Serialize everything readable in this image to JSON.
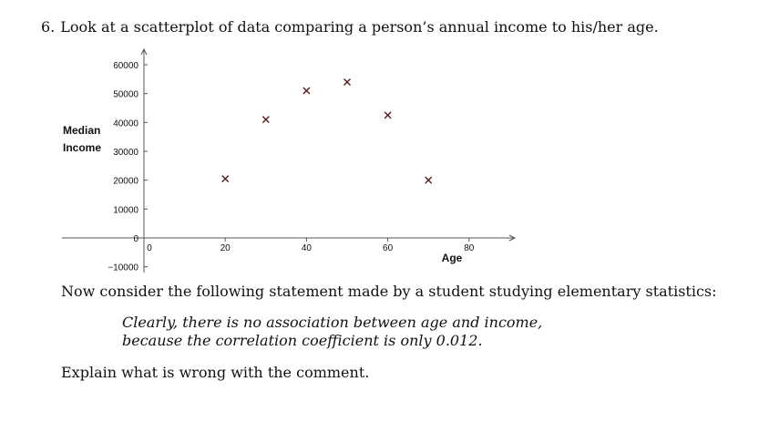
{
  "question": {
    "number": "6.",
    "text": "Look at a scatterplot of data comparing a person’s annual income to his/her age."
  },
  "chart_data": {
    "type": "scatter",
    "xlabel": "Age",
    "ylabel_lines": [
      "Median",
      "Income"
    ],
    "x_ticks": [
      0,
      20,
      40,
      60,
      80
    ],
    "y_ticks": [
      -10000,
      0,
      10000,
      20000,
      30000,
      40000,
      50000,
      60000
    ],
    "xlim": [
      -20,
      90
    ],
    "ylim": [
      -12000,
      65000
    ],
    "marker": "x",
    "points": [
      {
        "x": 20,
        "y": 20500
      },
      {
        "x": 30,
        "y": 41000
      },
      {
        "x": 40,
        "y": 51000
      },
      {
        "x": 50,
        "y": 54000
      },
      {
        "x": 60,
        "y": 42500
      },
      {
        "x": 70,
        "y": 20000
      }
    ],
    "colors": {
      "axis": "#555555",
      "marker": "#5a1a1a",
      "text": "#111111"
    }
  },
  "statement_intro": "Now consider the following statement made by a student studying elementary statistics:",
  "quote_lines": [
    "Clearly, there is no association between age and income,",
    "because the correlation coefficient is only 0.012."
  ],
  "prompt": "Explain what is wrong with the comment."
}
